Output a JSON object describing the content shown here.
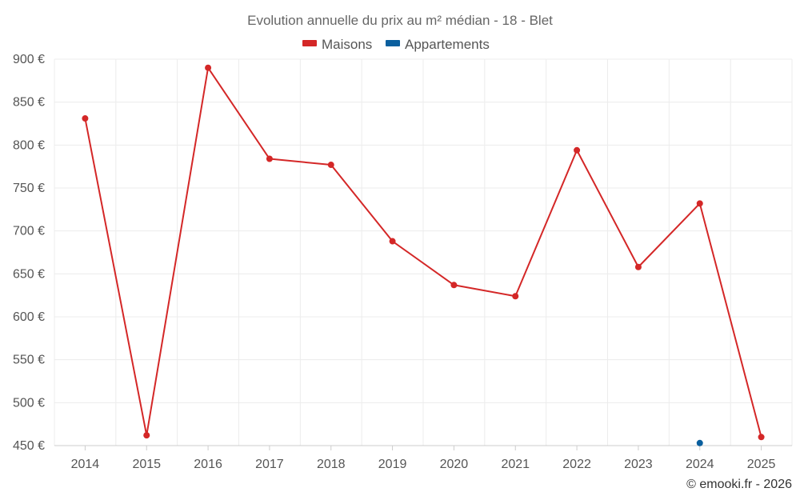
{
  "chart_data": {
    "type": "line",
    "title": "Evolution annuelle du prix au m² médian - 18 - Blet",
    "categories": [
      "2014",
      "2015",
      "2016",
      "2017",
      "2018",
      "2019",
      "2020",
      "2021",
      "2022",
      "2023",
      "2024",
      "2025"
    ],
    "series": [
      {
        "name": "Maisons",
        "color": "#d42727",
        "values": [
          831,
          462,
          890,
          784,
          777,
          688,
          637,
          624,
          794,
          658,
          732,
          460
        ]
      },
      {
        "name": "Appartements",
        "color": "#0a5f9e",
        "values": [
          null,
          null,
          null,
          null,
          null,
          null,
          null,
          null,
          null,
          null,
          453,
          null
        ]
      }
    ],
    "ylim": [
      450,
      900
    ],
    "yticks": [
      450,
      500,
      550,
      600,
      650,
      700,
      750,
      800,
      850,
      900
    ],
    "ytick_labels": [
      "450 €",
      "500 €",
      "550 €",
      "600 €",
      "650 €",
      "700 €",
      "750 €",
      "800 €",
      "850 €",
      "900 €"
    ],
    "xlabel": "",
    "ylabel": "",
    "legend_position": "top-center",
    "grid": true
  },
  "credit": "© emooki.fr - 2026"
}
